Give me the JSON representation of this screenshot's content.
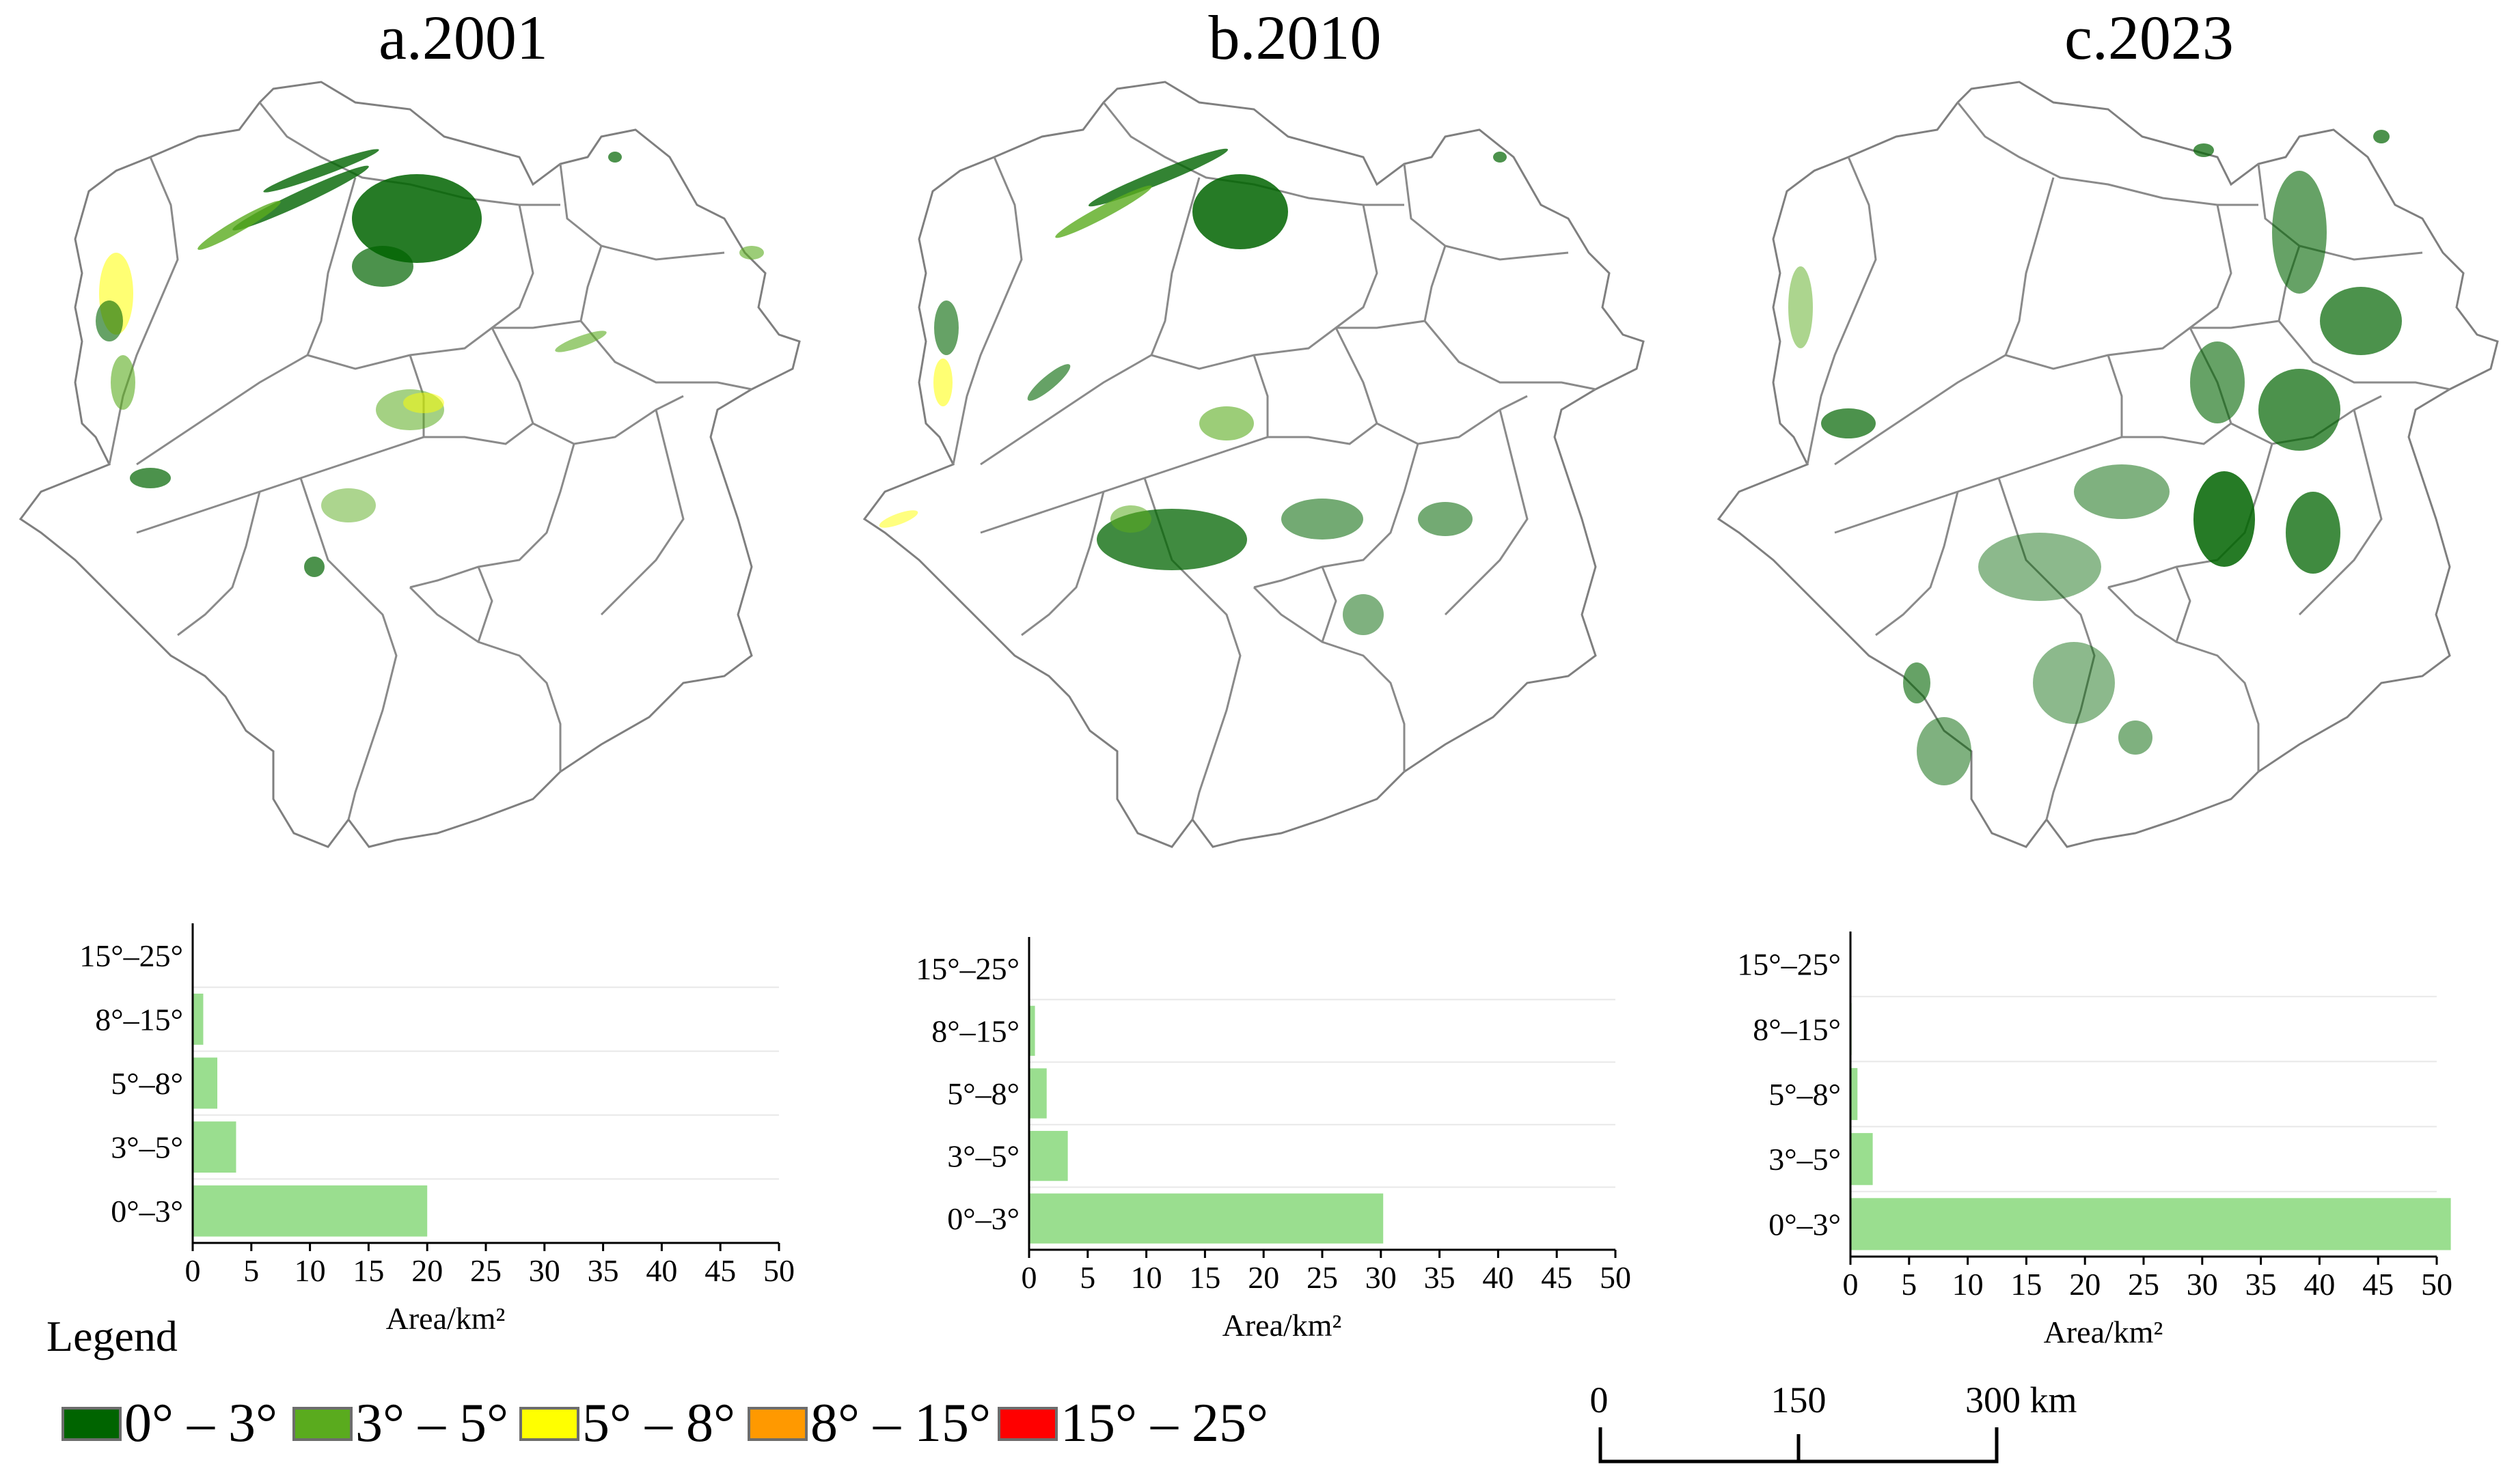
{
  "panels": [
    {
      "title": "a.2001"
    },
    {
      "title": "b.2010"
    },
    {
      "title": "c.2023"
    }
  ],
  "chart_data": [
    {
      "type": "bar",
      "orientation": "horizontal",
      "categories": [
        "15°–25°",
        "8°–15°",
        "5°–8°",
        "3°–5°",
        "0°–3°"
      ],
      "values": [
        0,
        0.9,
        2.1,
        3.7,
        20.0
      ],
      "xlabel": "Area/km²",
      "xlim": [
        0,
        50
      ],
      "xticks": [
        "0",
        "5",
        "10",
        "15",
        "20",
        "25",
        "30",
        "35",
        "40",
        "45",
        "50"
      ],
      "bar_color": "#9ade8f"
    },
    {
      "type": "bar",
      "orientation": "horizontal",
      "categories": [
        "15°–25°",
        "8°–15°",
        "5°–8°",
        "3°–5°",
        "0°–3°"
      ],
      "values": [
        0,
        0.5,
        1.5,
        3.3,
        30.2
      ],
      "xlabel": "Area/km²",
      "xlim": [
        0,
        50
      ],
      "xticks": [
        "0",
        "5",
        "10",
        "15",
        "20",
        "25",
        "30",
        "35",
        "40",
        "45",
        "50"
      ],
      "bar_color": "#9ade8f"
    },
    {
      "type": "bar",
      "orientation": "horizontal",
      "categories": [
        "15°–25°",
        "8°–15°",
        "5°–8°",
        "3°–5°",
        "0°–3°"
      ],
      "values": [
        0,
        0.1,
        0.6,
        1.9,
        51.2
      ],
      "xlabel": "Area/km²",
      "xlim": [
        0,
        50
      ],
      "xticks": [
        "0",
        "5",
        "10",
        "15",
        "20",
        "25",
        "30",
        "35",
        "40",
        "45",
        "50"
      ],
      "bar_color": "#9ade8f"
    }
  ],
  "legend": {
    "title": "Legend",
    "items": [
      {
        "label": "0° – 3°",
        "color": "#006400"
      },
      {
        "label": "3° – 5°",
        "color": "#5aab1e"
      },
      {
        "label": "5° – 8°",
        "color": "#ffff00"
      },
      {
        "label": "8° – 15°",
        "color": "#ff9900"
      },
      {
        "label": "15° – 25°",
        "color": "#ff0000"
      }
    ]
  },
  "scale_bar": {
    "labels": [
      "0",
      "150",
      "300 km"
    ]
  },
  "map_colors": {
    "boundary": "#7f7f7f",
    "fill": "#ffffff"
  }
}
